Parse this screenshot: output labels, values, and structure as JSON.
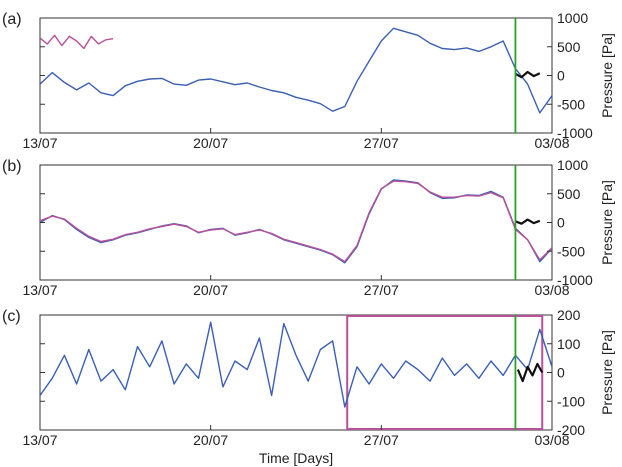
{
  "chart_data": [
    {
      "type": "line",
      "panel_label": "(a)",
      "ylabel": "Pressure [Pa]",
      "ylim": [
        -1000,
        1000
      ],
      "yticks": [
        "1000",
        "500",
        "0",
        "-500",
        "-1000"
      ],
      "xlim_days": [
        0,
        21
      ],
      "xticks": [
        "13/07",
        "20/07",
        "27/07",
        "03/08"
      ],
      "grid": false,
      "vertical_marker": {
        "x_day": 19.5,
        "color": "#2ca02c"
      },
      "series": [
        {
          "color": "#3a5fb5",
          "x": [
            0,
            0.5,
            1,
            1.5,
            2,
            2.5,
            3,
            3.5,
            4,
            4.5,
            5,
            5.5,
            6,
            6.5,
            7,
            7.5,
            8,
            8.5,
            9,
            9.5,
            10,
            10.5,
            11,
            11.5,
            12,
            12.5,
            13,
            13.5,
            14,
            14.5,
            15,
            15.5,
            16,
            16.5,
            17,
            17.5,
            18,
            18.5,
            19,
            19.5,
            20,
            20.5,
            21
          ],
          "y": [
            -150,
            50,
            -120,
            -250,
            -130,
            -300,
            -350,
            -180,
            -100,
            -60,
            -50,
            -150,
            -170,
            -80,
            -60,
            -110,
            -160,
            -130,
            -200,
            -260,
            -300,
            -380,
            -430,
            -490,
            -620,
            -540,
            -100,
            250,
            600,
            820,
            760,
            700,
            560,
            470,
            450,
            480,
            420,
            500,
            600,
            120,
            -150,
            -650,
            -350
          ]
        },
        {
          "color": "#b8509a",
          "x": [
            0,
            0.3,
            0.6,
            0.9,
            1.2,
            1.5,
            1.8,
            2.1,
            2.4,
            2.7,
            3.0
          ],
          "y": [
            650,
            550,
            700,
            520,
            680,
            600,
            470,
            680,
            550,
            620,
            640
          ]
        },
        {
          "color": "#111111",
          "x": [
            19.5,
            19.75,
            20,
            20.25,
            20.5
          ],
          "y": [
            30,
            -30,
            60,
            -10,
            40
          ]
        }
      ]
    },
    {
      "type": "line",
      "panel_label": "(b)",
      "ylabel": "Pressure [Pa]",
      "ylim": [
        -1000,
        1000
      ],
      "yticks": [
        "1000",
        "500",
        "0",
        "-500",
        "-1000"
      ],
      "xlim_days": [
        0,
        21
      ],
      "xticks": [
        "13/07",
        "20/07",
        "27/07",
        "03/08"
      ],
      "grid": false,
      "vertical_marker": {
        "x_day": 19.5,
        "color": "#2ca02c"
      },
      "series": [
        {
          "color": "#3a5fb5",
          "x": [
            0,
            0.5,
            1,
            1.5,
            2,
            2.5,
            3,
            3.5,
            4,
            4.5,
            5,
            5.5,
            6,
            6.5,
            7,
            7.5,
            8,
            8.5,
            9,
            9.5,
            10,
            10.5,
            11,
            11.5,
            12,
            12.5,
            13,
            13.5,
            14,
            14.5,
            15,
            15.5,
            16,
            16.5,
            17,
            17.5,
            18,
            18.5,
            19,
            19.5,
            20,
            20.5,
            21
          ],
          "y": [
            0,
            120,
            50,
            -120,
            -260,
            -350,
            -300,
            -220,
            -180,
            -120,
            -60,
            -20,
            -60,
            -180,
            -120,
            -100,
            -220,
            -180,
            -120,
            -200,
            -300,
            -360,
            -420,
            -480,
            -560,
            -700,
            -420,
            150,
            580,
            740,
            720,
            690,
            520,
            420,
            430,
            480,
            470,
            540,
            440,
            -100,
            -300,
            -680,
            -450
          ]
        },
        {
          "color": "#b8509a",
          "x": [
            0,
            0.5,
            1,
            1.5,
            2,
            2.5,
            3,
            3.5,
            4,
            4.5,
            5,
            5.5,
            6,
            6.5,
            7,
            7.5,
            8,
            8.5,
            9,
            9.5,
            10,
            10.5,
            11,
            11.5,
            12,
            12.5,
            13,
            13.5,
            14,
            14.5,
            15,
            15.5,
            16,
            16.5,
            17,
            17.5,
            18,
            18.5,
            19,
            19.5,
            20,
            20.5,
            21
          ],
          "y": [
            30,
            110,
            60,
            -100,
            -240,
            -330,
            -290,
            -210,
            -170,
            -110,
            -70,
            -30,
            -70,
            -170,
            -130,
            -110,
            -210,
            -170,
            -130,
            -190,
            -290,
            -350,
            -410,
            -470,
            -550,
            -680,
            -400,
            170,
            590,
            720,
            710,
            680,
            530,
            440,
            440,
            470,
            460,
            520,
            430,
            -120,
            -300,
            -650,
            -440
          ]
        },
        {
          "color": "#111111",
          "x": [
            19.5,
            19.75,
            20,
            20.25,
            20.5
          ],
          "y": [
            20,
            -20,
            50,
            -10,
            30
          ]
        }
      ]
    },
    {
      "type": "line",
      "panel_label": "(c)",
      "ylabel": "Pressure [Pa]",
      "xlabel": "Time [Days]",
      "ylim": [
        -200,
        200
      ],
      "yticks": [
        "200",
        "100",
        "0",
        "-100",
        "-200"
      ],
      "xlim_days": [
        0,
        21
      ],
      "xticks": [
        "13/07",
        "20/07",
        "27/07",
        "03/08"
      ],
      "grid": false,
      "vertical_marker": {
        "x_day": 19.5,
        "color": "#2ca02c"
      },
      "highlight_box": {
        "x_day": [
          12.6,
          20.6
        ],
        "y": [
          -200,
          200
        ],
        "color": "#b8509a"
      },
      "series": [
        {
          "color": "#3a5fb5",
          "x": [
            0,
            0.5,
            1,
            1.5,
            2,
            2.5,
            3,
            3.5,
            4,
            4.5,
            5,
            5.5,
            6,
            6.5,
            7,
            7.5,
            8,
            8.5,
            9,
            9.5,
            10,
            10.5,
            11,
            11.5,
            12,
            12.5,
            13,
            13.5,
            14,
            14.5,
            15,
            15.5,
            16,
            16.5,
            17,
            17.5,
            18,
            18.5,
            19,
            19.5,
            20,
            20.5,
            21
          ],
          "y": [
            -80,
            -20,
            60,
            -40,
            80,
            -30,
            10,
            -60,
            90,
            20,
            110,
            -40,
            30,
            -20,
            175,
            -50,
            40,
            10,
            120,
            -80,
            170,
            60,
            -30,
            80,
            110,
            -120,
            20,
            -40,
            30,
            -20,
            40,
            10,
            -30,
            50,
            -10,
            30,
            -20,
            40,
            -10,
            60,
            10,
            150,
            20
          ]
        },
        {
          "color": "#111111",
          "x": [
            19.6,
            19.8,
            20.0,
            20.2,
            20.4,
            20.6
          ],
          "y": [
            10,
            -30,
            20,
            -10,
            30,
            0
          ]
        }
      ]
    }
  ]
}
